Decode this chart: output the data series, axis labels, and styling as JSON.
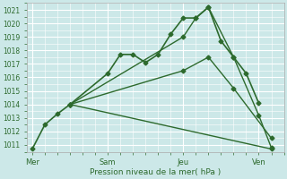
{
  "xlabel": "Pression niveau de la mer( hPa )",
  "background_color": "#cce8e8",
  "grid_color": "#ffffff",
  "line_color": "#2d6a2d",
  "ylim": [
    1010.5,
    1021.5
  ],
  "yticks": [
    1011,
    1012,
    1013,
    1014,
    1015,
    1016,
    1017,
    1018,
    1019,
    1020,
    1021
  ],
  "xtick_labels": [
    "Mer",
    "Sam",
    "Jeu",
    "Ven"
  ],
  "xtick_positions": [
    0,
    30,
    60,
    90
  ],
  "xlim": [
    -2,
    100
  ],
  "series": [
    {
      "x": [
        0,
        5,
        10,
        15,
        30,
        35,
        40,
        45,
        50,
        55,
        60,
        65,
        70,
        75,
        80,
        85,
        90
      ],
      "y": [
        1010.7,
        1012.5,
        1013.3,
        1014.0,
        1016.3,
        1017.7,
        1017.7,
        1017.1,
        1017.7,
        1019.2,
        1020.4,
        1020.4,
        1021.2,
        1018.7,
        1017.5,
        1016.3,
        1014.1
      ],
      "marker": "D",
      "markersize": 2.5,
      "linewidth": 1.2,
      "zorder": 4
    },
    {
      "x": [
        15,
        95
      ],
      "y": [
        1014.0,
        1010.7
      ],
      "marker": "D",
      "markersize": 2.5,
      "linewidth": 1.0,
      "zorder": 3
    },
    {
      "x": [
        15,
        60,
        70,
        80,
        95
      ],
      "y": [
        1014.0,
        1016.5,
        1017.5,
        1015.2,
        1011.5
      ],
      "marker": "D",
      "markersize": 2.5,
      "linewidth": 1.0,
      "zorder": 3
    },
    {
      "x": [
        15,
        60,
        65,
        70,
        80,
        90,
        95
      ],
      "y": [
        1014.0,
        1019.0,
        1020.4,
        1021.2,
        1017.5,
        1013.2,
        1010.8
      ],
      "marker": "D",
      "markersize": 2.5,
      "linewidth": 1.0,
      "zorder": 3
    }
  ]
}
